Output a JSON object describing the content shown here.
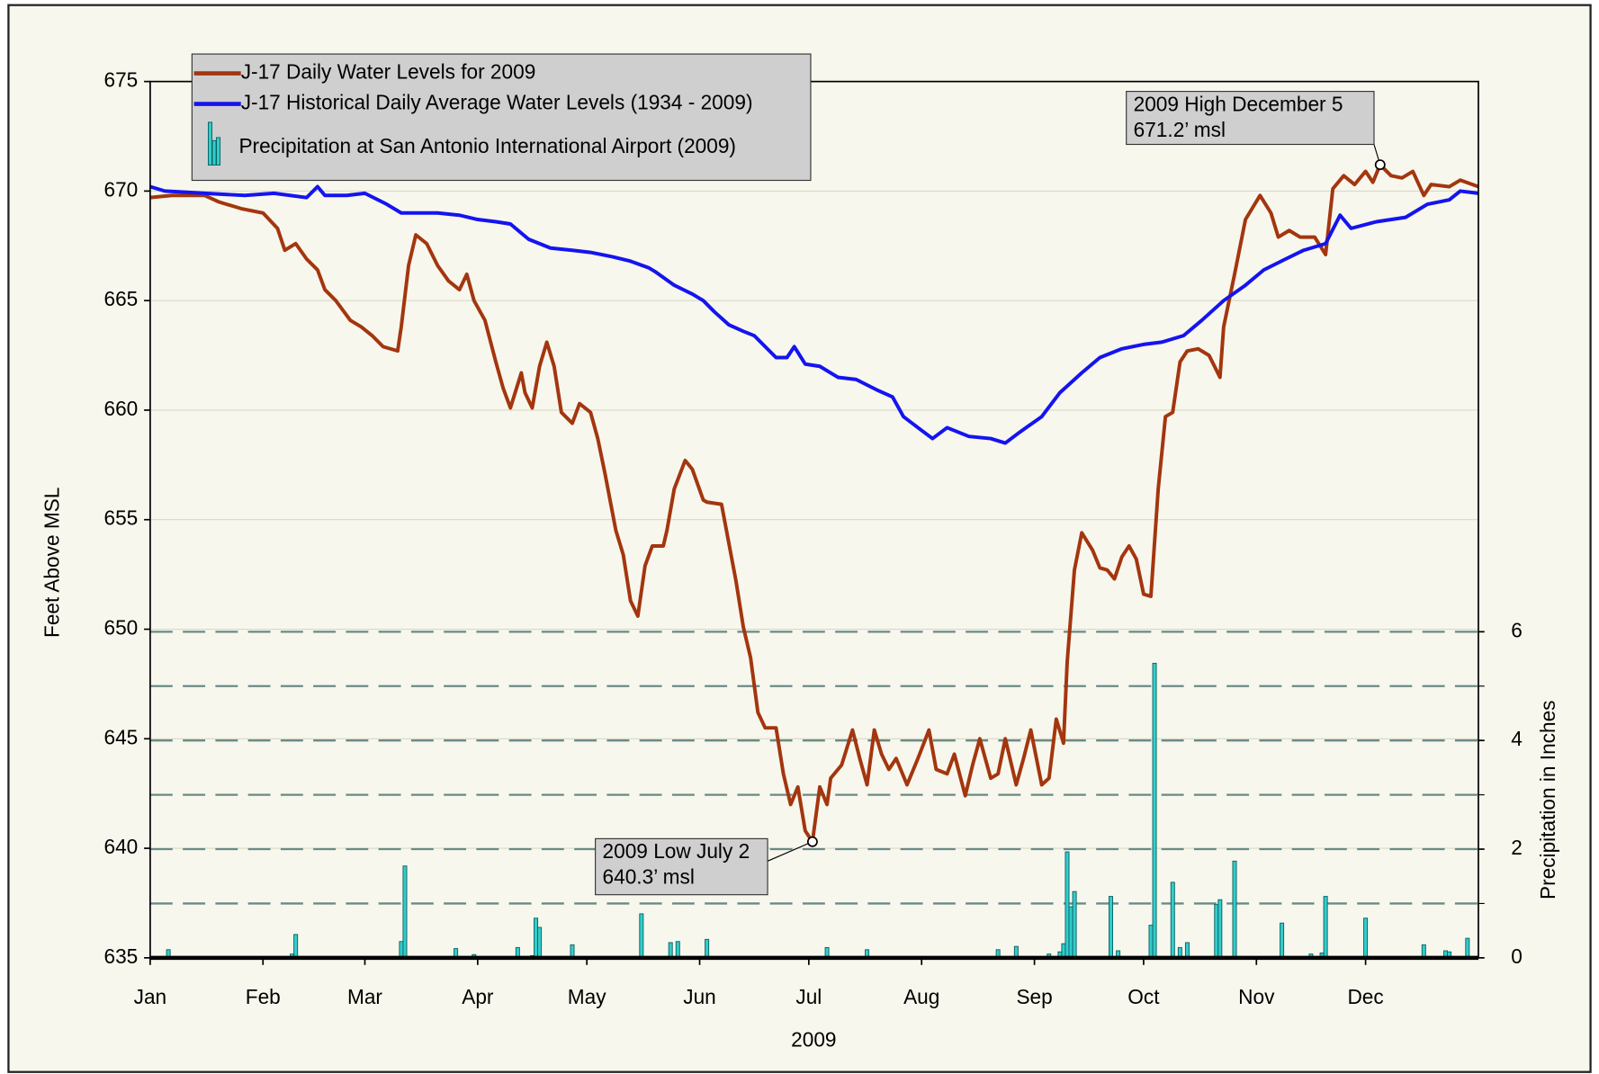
{
  "chart_data": {
    "type": "line",
    "xlabel": "2009",
    "ylabel": "Feet Above MSL",
    "y2label": "Precipitation in Inches",
    "xlim": [
      0,
      365
    ],
    "xticks": [
      {
        "value": 0,
        "label": "Jan"
      },
      {
        "value": 31,
        "label": "Feb"
      },
      {
        "value": 59,
        "label": "Mar"
      },
      {
        "value": 90,
        "label": "Apr"
      },
      {
        "value": 120,
        "label": "May"
      },
      {
        "value": 151,
        "label": "Jun"
      },
      {
        "value": 181,
        "label": "Jul"
      },
      {
        "value": 212,
        "label": "Aug"
      },
      {
        "value": 243,
        "label": "Sep"
      },
      {
        "value": 273,
        "label": "Oct"
      },
      {
        "value": 304,
        "label": "Nov"
      },
      {
        "value": 334,
        "label": "Dec"
      }
    ],
    "ylim": [
      635,
      675
    ],
    "yticks": [
      635,
      640,
      645,
      650,
      655,
      660,
      665,
      670,
      675
    ],
    "y2lim": [
      0,
      16.125
    ],
    "y2ticks": [
      0,
      2,
      4,
      6
    ],
    "y2minorticks": [
      1,
      3,
      5
    ],
    "grid": true,
    "legend": "top-left",
    "series": [
      {
        "name": "J-17 Daily Water Levels for 2009",
        "type": "line",
        "color": "#a3360f",
        "x": [
          0,
          6,
          15,
          19,
          25,
          31,
          35,
          37,
          40,
          43,
          46,
          48,
          51,
          55,
          58,
          61,
          64,
          68,
          69,
          71,
          73,
          76,
          79,
          82,
          85,
          87,
          89,
          92,
          95,
          97,
          99,
          102,
          103,
          105,
          107,
          109,
          111,
          113,
          116,
          118,
          121,
          123,
          125,
          128,
          130,
          132,
          134,
          136,
          138,
          141,
          142,
          144,
          147,
          149,
          152,
          153,
          157,
          161,
          163,
          165,
          167,
          169,
          172,
          174,
          176,
          178,
          180,
          182,
          184,
          186,
          187,
          190,
          193,
          195,
          197,
          199,
          201,
          203,
          205,
          208,
          211,
          214,
          216,
          219,
          221,
          224,
          226,
          228,
          231,
          233,
          235,
          238,
          240,
          242,
          245,
          247,
          249,
          251,
          252,
          254,
          256,
          259,
          261,
          263,
          265,
          267,
          269,
          271,
          273,
          275,
          277,
          279,
          281,
          283,
          285,
          288,
          291,
          294,
          295,
          298,
          301,
          305,
          308,
          310,
          313,
          316,
          320,
          323,
          325,
          328,
          331,
          334,
          336,
          338,
          341,
          344,
          347,
          350,
          352,
          357,
          360,
          365
        ],
        "values": [
          669.7,
          669.8,
          669.8,
          669.5,
          669.2,
          669.0,
          668.3,
          667.3,
          667.6,
          666.9,
          666.4,
          665.5,
          665.0,
          664.1,
          663.8,
          663.4,
          662.9,
          662.7,
          663.8,
          666.6,
          668.0,
          667.6,
          666.6,
          665.9,
          665.5,
          666.2,
          665.0,
          664.1,
          662.2,
          661.0,
          660.1,
          661.7,
          660.8,
          660.1,
          662.0,
          663.1,
          662.0,
          659.9,
          659.4,
          660.3,
          659.9,
          658.7,
          657.1,
          654.5,
          653.4,
          651.3,
          650.6,
          652.9,
          653.8,
          653.8,
          654.5,
          656.4,
          657.7,
          657.3,
          655.9,
          655.8,
          655.7,
          652.2,
          650.1,
          648.7,
          646.2,
          645.5,
          645.5,
          643.4,
          642.0,
          642.8,
          640.8,
          640.3,
          642.8,
          642.0,
          643.2,
          643.8,
          645.4,
          644.1,
          642.9,
          645.4,
          644.3,
          643.6,
          644.1,
          642.9,
          644.1,
          645.4,
          643.6,
          643.4,
          644.3,
          642.4,
          643.8,
          645.0,
          643.2,
          643.4,
          645.0,
          642.9,
          644.1,
          645.4,
          642.9,
          643.2,
          645.9,
          644.8,
          648.5,
          652.7,
          654.4,
          653.6,
          652.8,
          652.7,
          652.3,
          653.3,
          653.8,
          653.2,
          651.6,
          651.5,
          656.4,
          659.7,
          659.9,
          662.2,
          662.7,
          662.8,
          662.5,
          661.5,
          663.8,
          666.2,
          668.7,
          669.8,
          669.0,
          667.9,
          668.2,
          667.9,
          667.9,
          667.1,
          670.1,
          670.7,
          670.3,
          670.9,
          670.4,
          671.2,
          670.7,
          670.6,
          670.9,
          669.8,
          670.3,
          670.2,
          670.5,
          670.2
        ]
      },
      {
        "name": "J-17 Historical Daily Average Water Levels (1934 - 2009)",
        "type": "line",
        "color": "#1414f0",
        "x": [
          0,
          4,
          15,
          26,
          34,
          43,
          46,
          48,
          54,
          59,
          65,
          69,
          74,
          79,
          85,
          90,
          95,
          99,
          104,
          110,
          116,
          121,
          127,
          132,
          137,
          139,
          144,
          149,
          152,
          155,
          159,
          163,
          166,
          172,
          175,
          177,
          180,
          184,
          189,
          194,
          200,
          204,
          207,
          211,
          215,
          219,
          225,
          231,
          235,
          239,
          245,
          250,
          256,
          261,
          267,
          273,
          278,
          284,
          289,
          295,
          301,
          306,
          312,
          317,
          323,
          327,
          330,
          337,
          345,
          351,
          357,
          360,
          365
        ],
        "values": [
          670.2,
          670.0,
          669.9,
          669.8,
          669.9,
          669.7,
          670.2,
          669.8,
          669.8,
          669.9,
          669.4,
          669.0,
          669.0,
          669.0,
          668.9,
          668.7,
          668.6,
          668.5,
          667.8,
          667.4,
          667.3,
          667.2,
          667.0,
          666.8,
          666.5,
          666.3,
          665.7,
          665.3,
          665.0,
          664.5,
          663.9,
          663.6,
          663.4,
          662.4,
          662.4,
          662.9,
          662.1,
          662.0,
          661.5,
          661.4,
          660.9,
          660.6,
          659.7,
          659.2,
          658.7,
          659.2,
          658.8,
          658.7,
          658.5,
          659.0,
          659.7,
          660.8,
          661.7,
          662.4,
          662.8,
          663.0,
          663.1,
          663.4,
          664.1,
          665.0,
          665.7,
          666.4,
          666.9,
          667.3,
          667.6,
          668.9,
          668.3,
          668.6,
          668.8,
          669.4,
          669.6,
          670.0,
          669.9
        ]
      },
      {
        "name": "Precipitation at San Antonio International Airport (2009)",
        "type": "bar",
        "axis": "y2",
        "color": "#33cccc",
        "x": [
          5,
          39,
          40,
          69,
          70,
          84,
          89,
          101,
          105,
          106,
          107,
          116,
          135,
          143,
          145,
          153,
          186,
          197,
          233,
          238,
          247,
          250,
          251,
          252,
          253,
          254,
          264,
          266,
          275,
          276,
          281,
          283,
          285,
          293,
          294,
          298,
          311,
          319,
          322,
          323,
          334,
          350,
          356,
          357,
          362
        ],
        "values": [
          0.15,
          0.07,
          0.43,
          0.3,
          1.69,
          0.17,
          0.06,
          0.19,
          0.04,
          0.73,
          0.56,
          0.24,
          0.81,
          0.28,
          0.3,
          0.34,
          0.19,
          0.15,
          0.15,
          0.21,
          0.07,
          0.11,
          0.26,
          1.95,
          0.94,
          1.22,
          1.13,
          0.13,
          0.6,
          5.42,
          1.39,
          0.19,
          0.28,
          0.98,
          1.07,
          1.78,
          0.64,
          0.07,
          0.09,
          1.13,
          0.73,
          0.24,
          0.13,
          0.11,
          0.36
        ]
      }
    ],
    "annotations": [
      {
        "text": [
          "2009 High December 5",
          "671.2’ msl"
        ],
        "x": 338,
        "y": 671.2
      },
      {
        "text": [
          "2009 Low July 2",
          "640.3’ msl"
        ],
        "x": 182,
        "y": 640.3
      }
    ]
  }
}
